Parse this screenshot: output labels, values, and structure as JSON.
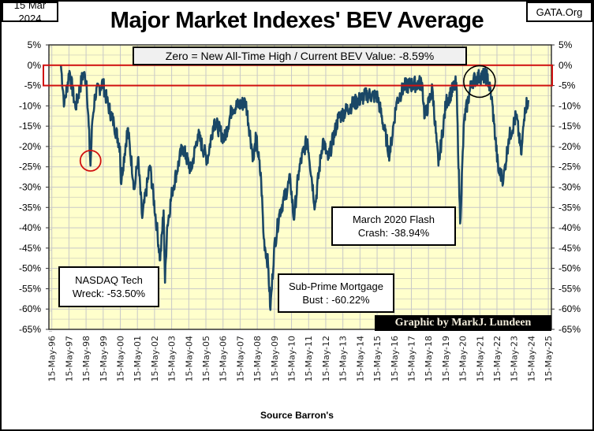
{
  "header": {
    "date": "15 Mar 2024",
    "site": "GATA.Org"
  },
  "colors": {
    "background": "#ffffcc",
    "line": "#1a4766",
    "highlight": "#d01010",
    "grid": "#c8c8c8"
  },
  "chart_data": {
    "type": "line",
    "title": "Major Market Indexes' BEV Average",
    "xlabel": "Source Barron's",
    "ylabel": "",
    "ylim": [
      -65,
      5
    ],
    "yticks": [
      "5%",
      "0%",
      "-5%",
      "-10%",
      "-15%",
      "-20%",
      "-25%",
      "-30%",
      "-35%",
      "-40%",
      "-45%",
      "-50%",
      "-55%",
      "-60%",
      "-65%"
    ],
    "ytick_values": [
      5,
      0,
      -5,
      -10,
      -15,
      -20,
      -25,
      -30,
      -35,
      -40,
      -45,
      -50,
      -55,
      -60,
      -65
    ],
    "xlim": [
      1996.2,
      2025.55
    ],
    "xticks": [
      "15-May-96",
      "15-May-97",
      "15-May-98",
      "15-May-99",
      "15-May-00",
      "15-May-01",
      "15-May-02",
      "15-May-03",
      "15-May-04",
      "15-May-05",
      "15-May-06",
      "15-May-07",
      "15-May-08",
      "15-May-09",
      "15-May-10",
      "15-May-11",
      "15-May-12",
      "15-May-13",
      "15-May-14",
      "15-May-15",
      "15-May-16",
      "15-May-17",
      "15-May-18",
      "15-May-19",
      "15-May-20",
      "15-May-21",
      "15-May-22",
      "15-May-23",
      "15-May-24",
      "15-May-25"
    ],
    "grid": true,
    "series": [
      {
        "name": "BEV Average",
        "points": [
          [
            1996.9,
            0
          ],
          [
            1997.1,
            -9.7
          ],
          [
            1997.4,
            -1.4
          ],
          [
            1997.75,
            -10.5
          ],
          [
            1998.2,
            -2
          ],
          [
            1998.4,
            -3.9
          ],
          [
            1998.63,
            -24.7
          ],
          [
            1998.74,
            -13.6
          ],
          [
            1998.9,
            -7.2
          ],
          [
            1999.35,
            -4.3
          ],
          [
            1999.6,
            -9
          ],
          [
            2000.0,
            -14.4
          ],
          [
            2000.35,
            -20
          ],
          [
            2000.4,
            -29
          ],
          [
            2000.8,
            -15.5
          ],
          [
            2001.2,
            -30.5
          ],
          [
            2001.4,
            -22.7
          ],
          [
            2001.65,
            -37.6
          ],
          [
            2002.1,
            -24.7
          ],
          [
            2002.5,
            -39.6
          ],
          [
            2002.7,
            -48
          ],
          [
            2002.9,
            -35.7
          ],
          [
            2002.98,
            -53.5
          ],
          [
            2003.1,
            -40
          ],
          [
            2003.4,
            -31
          ],
          [
            2004.0,
            -20
          ],
          [
            2004.5,
            -26
          ],
          [
            2004.9,
            -17
          ],
          [
            2005.45,
            -23.3
          ],
          [
            2005.85,
            -13.6
          ],
          [
            2006.45,
            -18.2
          ],
          [
            2006.9,
            -10.5
          ],
          [
            2007.7,
            -9.1
          ],
          [
            2008.15,
            -23.3
          ],
          [
            2008.3,
            -17.5
          ],
          [
            2008.6,
            -28.5
          ],
          [
            2008.75,
            -42.7
          ],
          [
            2009.0,
            -49
          ],
          [
            2009.14,
            -60.22
          ],
          [
            2009.35,
            -45.4
          ],
          [
            2009.67,
            -36.3
          ],
          [
            2010.3,
            -28
          ],
          [
            2010.5,
            -38
          ],
          [
            2010.8,
            -26
          ],
          [
            2011.05,
            -21.4
          ],
          [
            2011.3,
            -18.2
          ],
          [
            2011.74,
            -34.8
          ],
          [
            2012.2,
            -18.2
          ],
          [
            2012.5,
            -23.3
          ],
          [
            2013.1,
            -13
          ],
          [
            2013.9,
            -9.7
          ],
          [
            2014.8,
            -7.2
          ],
          [
            2015.4,
            -7.8
          ],
          [
            2016.1,
            -22.1
          ],
          [
            2016.5,
            -9.1
          ],
          [
            2016.95,
            -5.2
          ],
          [
            2018.0,
            -4.3
          ],
          [
            2018.15,
            -13
          ],
          [
            2018.6,
            -5.8
          ],
          [
            2018.95,
            -24.7
          ],
          [
            2019.4,
            -9.1
          ],
          [
            2020.0,
            -4.3
          ],
          [
            2020.22,
            -38.94
          ],
          [
            2020.45,
            -13.6
          ],
          [
            2020.9,
            -3.9
          ],
          [
            2021.4,
            -2.7
          ],
          [
            2021.8,
            -2.7
          ],
          [
            2022.05,
            -7.8
          ],
          [
            2022.2,
            -14.4
          ],
          [
            2022.45,
            -26
          ],
          [
            2022.75,
            -28
          ],
          [
            2023.05,
            -18.2
          ],
          [
            2023.5,
            -12.4
          ],
          [
            2023.8,
            -22
          ],
          [
            2024.0,
            -10.5
          ],
          [
            2024.2,
            -8.59
          ]
        ]
      }
    ],
    "annotations": {
      "zero_note": "Zero = New All-Time High / Current BEV Value:  -8.59%",
      "nasdaq": [
        "NASDAQ Tech",
        "Wreck:  -53.50%"
      ],
      "subprime": [
        "Sub-Prime Mortgage",
        "Bust : -60.22%"
      ],
      "covid": [
        "March  2020  Flash",
        "Crash:  -38.94%"
      ],
      "credit": "Graphic by MarkJ. Lundeen"
    }
  }
}
